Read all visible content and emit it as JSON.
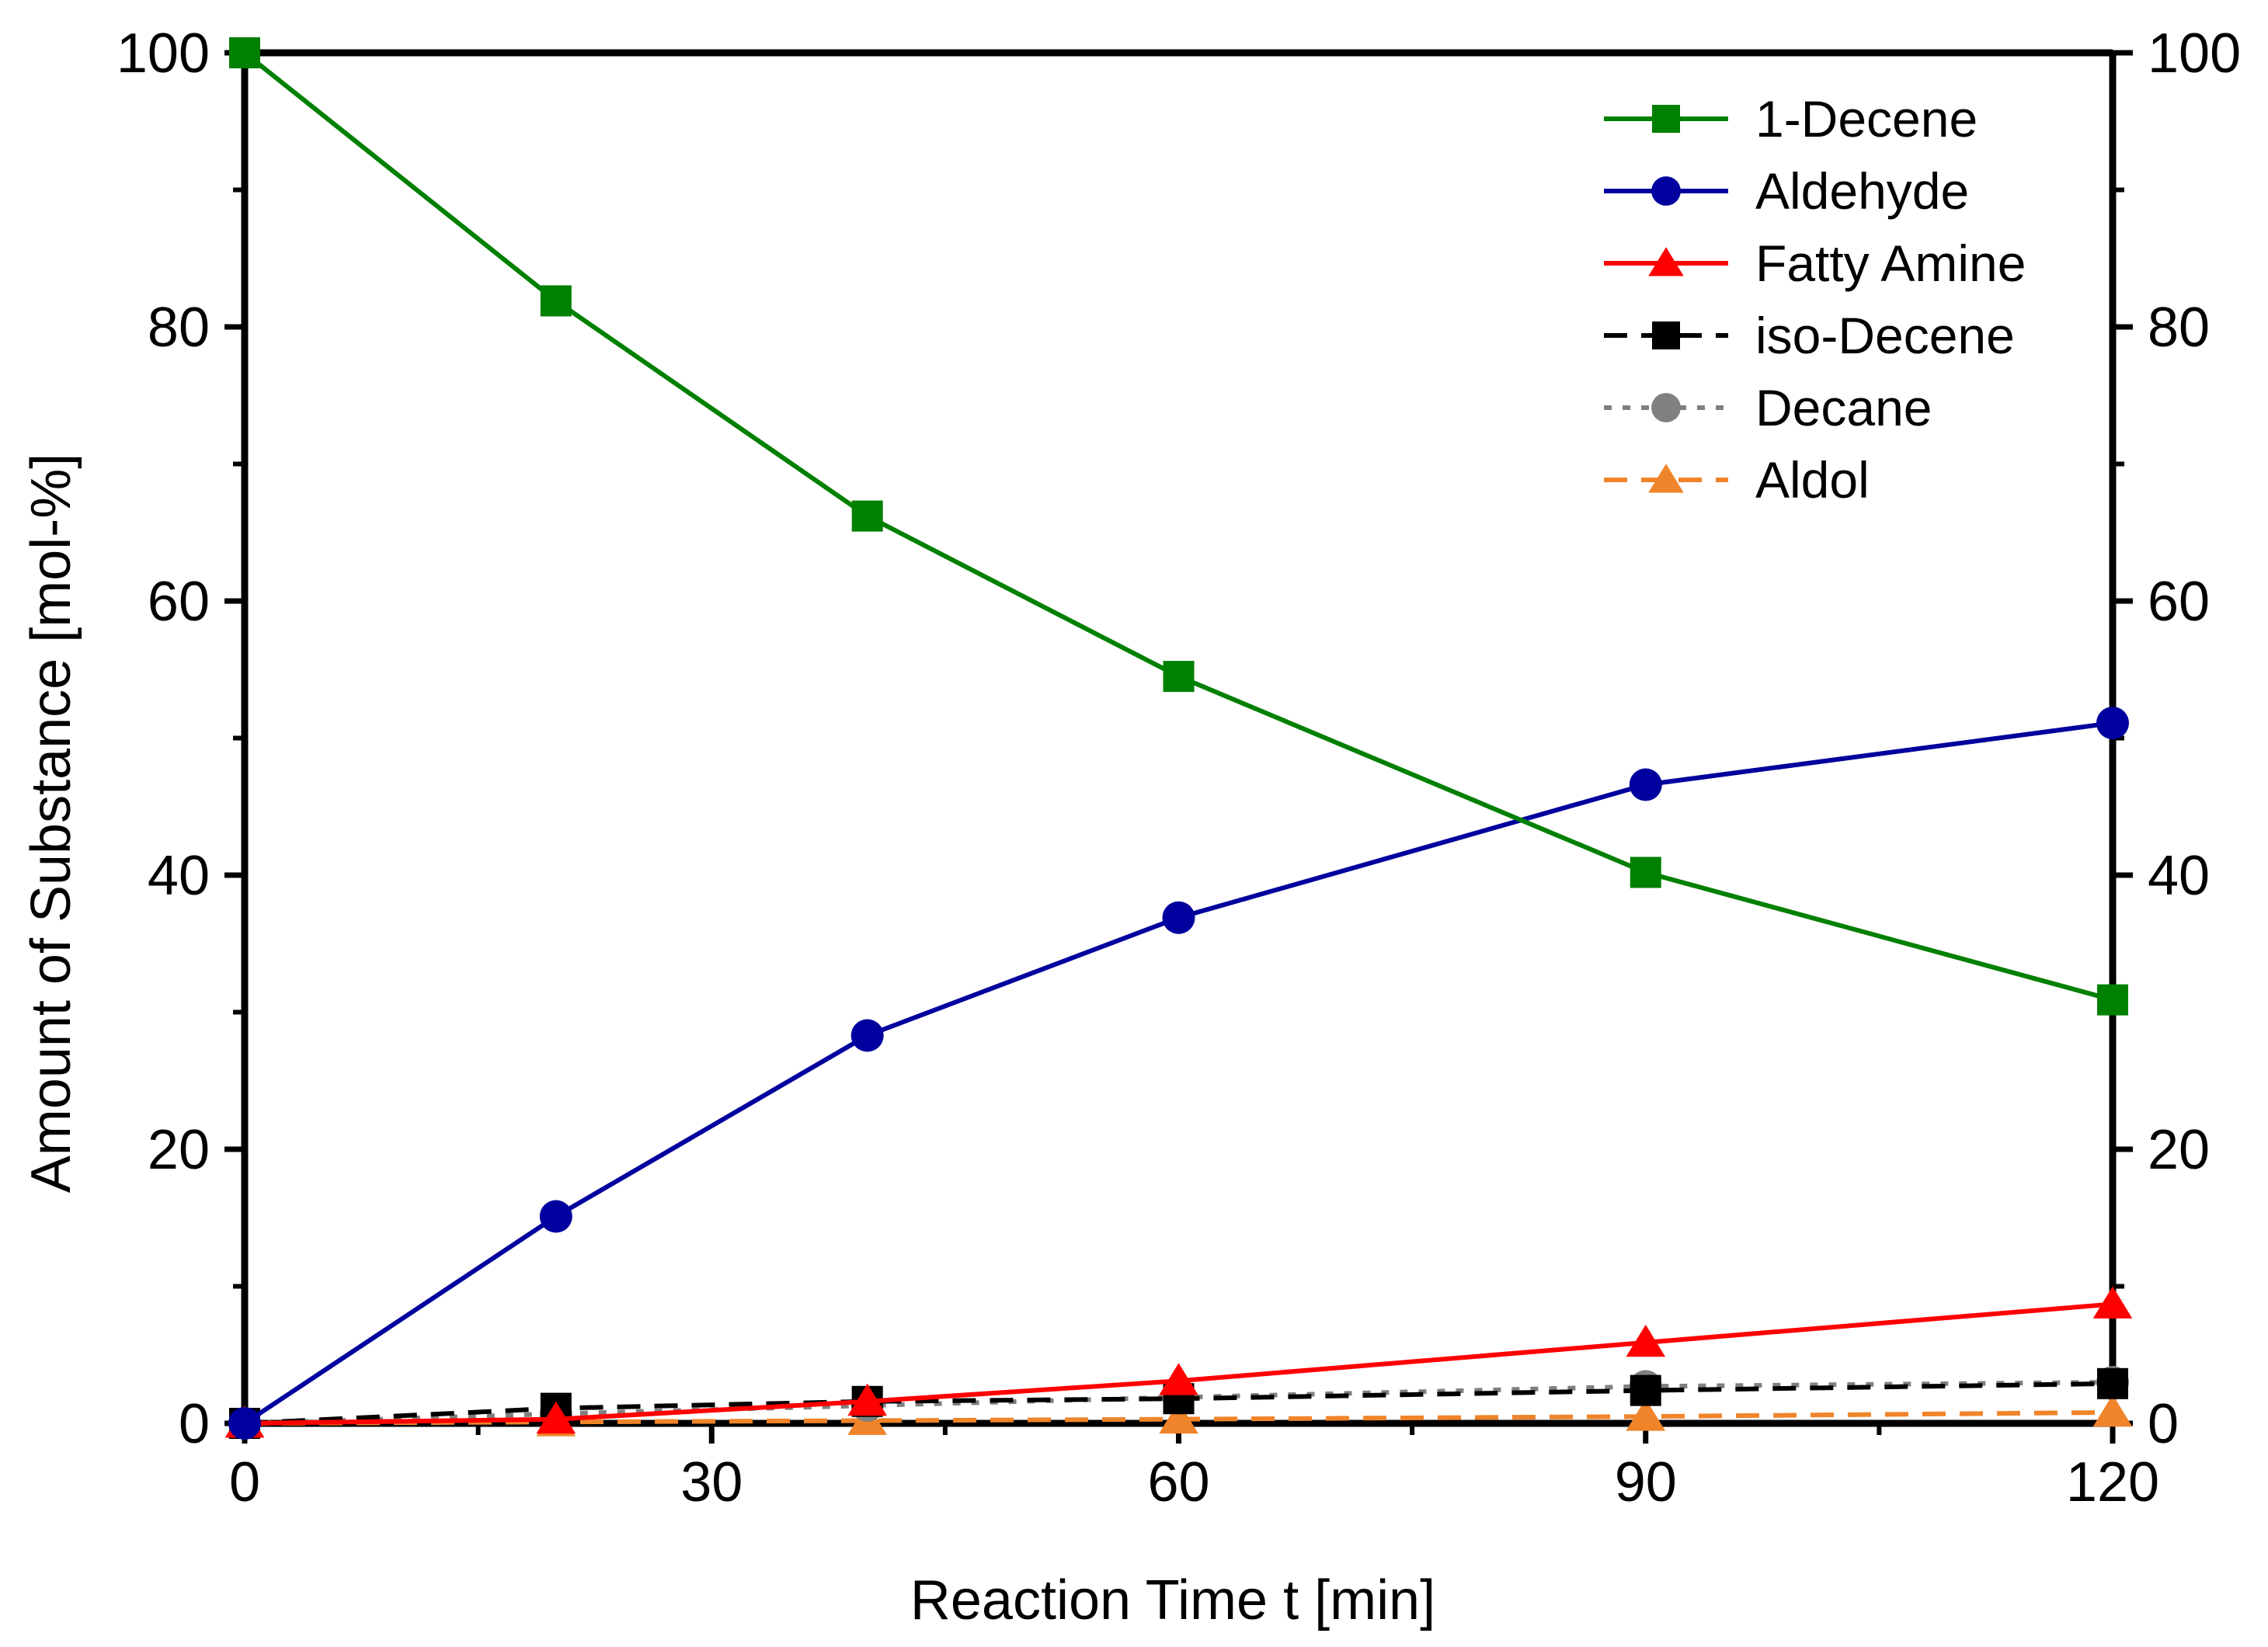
{
  "chart_data": {
    "type": "line",
    "title": "",
    "xlabel": "Reaction Time t [min]",
    "ylabel": "Amount of Substance [mol-%]",
    "xlim": [
      0,
      120
    ],
    "ylim": [
      0,
      100
    ],
    "xticks": [
      0,
      30,
      60,
      90,
      120
    ],
    "yticks": [
      0,
      20,
      40,
      60,
      80,
      100
    ],
    "x_tick_labels": [
      "0",
      "30",
      "60",
      "90",
      "120"
    ],
    "y_tick_labels": [
      "0",
      "20",
      "40",
      "60",
      "80",
      "100"
    ],
    "x_minor_ticks": [
      15,
      45,
      75,
      105
    ],
    "y_minor_ticks": [
      10,
      30,
      50,
      70,
      90
    ],
    "right_axis_mirrored": true,
    "grid": false,
    "legend_position": "top-right",
    "x": [
      0,
      20,
      40,
      60,
      90,
      120
    ],
    "series": [
      {
        "name": "1-Decene",
        "color": "#008000",
        "marker": "square",
        "line": "solid",
        "values": [
          100,
          81.9,
          66.2,
          54.5,
          40.2,
          30.9
        ]
      },
      {
        "name": "Aldehyde",
        "color": "#00009e",
        "marker": "circle",
        "line": "solid",
        "values": [
          0,
          15.1,
          28.3,
          36.9,
          46.6,
          51.1
        ]
      },
      {
        "name": "Fatty Amine",
        "color": "#ff0000",
        "marker": "triangle",
        "line": "solid",
        "values": [
          0,
          0.3,
          1.6,
          3.1,
          5.9,
          8.7
        ]
      },
      {
        "name": "iso-Decene",
        "color": "#000000",
        "marker": "square",
        "line": "dashed",
        "values": [
          0,
          1.1,
          1.6,
          1.8,
          2.4,
          2.9
        ]
      },
      {
        "name": "Decane",
        "color": "#808080",
        "marker": "circle",
        "line": "dotted",
        "values": [
          0,
          0.7,
          1.3,
          1.9,
          2.7,
          3.0
        ]
      },
      {
        "name": "Aldol",
        "color": "#f0842a",
        "marker": "triangle",
        "line": "dashed",
        "values": [
          0,
          0.1,
          0.2,
          0.3,
          0.5,
          0.8
        ]
      }
    ]
  }
}
